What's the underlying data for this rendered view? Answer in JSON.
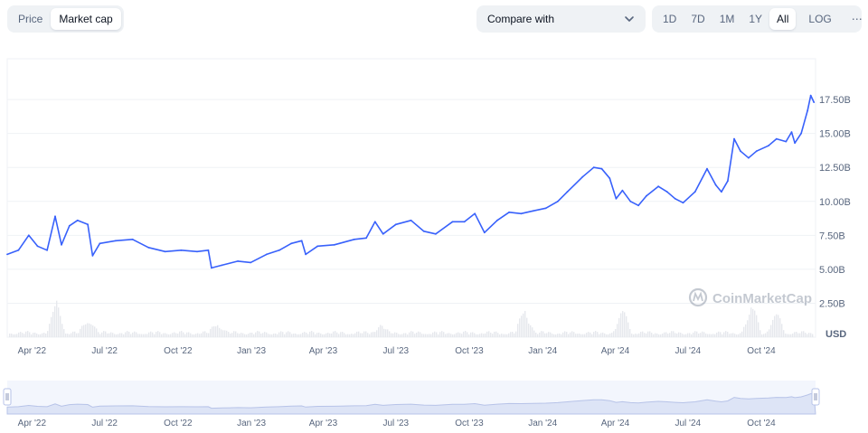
{
  "toolbar": {
    "chart_types": [
      "Price",
      "Market cap"
    ],
    "active_chart_type": "Market cap",
    "compare_label": "Compare with",
    "ranges": [
      "1D",
      "7D",
      "1M",
      "1Y",
      "All"
    ],
    "active_range": "All",
    "scale_label": "LOG",
    "more_icon": "more-dots-icon",
    "compare_icon": "chevron-down-icon"
  },
  "watermark": "CoinMarketCap",
  "colors": {
    "line": "#3861fb",
    "volume": "#e6e8ed",
    "grid": "#eff2f5",
    "navigator_fill": "#dde4f6"
  },
  "chart_data": {
    "type": "line",
    "ylabel": "USD",
    "y_ticks": [
      "2.50B",
      "5.00B",
      "7.50B",
      "10.00B",
      "12.50B",
      "15.00B",
      "17.50B"
    ],
    "y_tick_values": [
      2.5,
      5.0,
      7.5,
      10.0,
      12.5,
      15.0,
      17.5
    ],
    "ylim": [
      0,
      20.5
    ],
    "x_ticks": [
      "Apr '22",
      "Jul '22",
      "Oct '22",
      "Jan '23",
      "Apr '23",
      "Jul '23",
      "Oct '23",
      "Jan '24",
      "Apr '24",
      "Jul '24",
      "Oct '24"
    ],
    "x_tick_dates": [
      "2022-04-01",
      "2022-07-01",
      "2022-10-01",
      "2023-01-01",
      "2023-04-01",
      "2023-07-01",
      "2023-10-01",
      "2024-01-01",
      "2024-04-01",
      "2024-07-01",
      "2024-10-01"
    ],
    "xlim": [
      "2022-03-01",
      "2024-12-08"
    ],
    "grid": true,
    "series": [
      {
        "values": [
          [
            "2022-03-01",
            6.1
          ],
          [
            "2022-03-15",
            6.4
          ],
          [
            "2022-03-28",
            7.5
          ],
          [
            "2022-04-08",
            6.7
          ],
          [
            "2022-04-20",
            6.4
          ],
          [
            "2022-04-30",
            8.9
          ],
          [
            "2022-05-08",
            6.8
          ],
          [
            "2022-05-18",
            8.2
          ],
          [
            "2022-05-28",
            8.6
          ],
          [
            "2022-06-10",
            8.3
          ],
          [
            "2022-06-16",
            6.0
          ],
          [
            "2022-06-25",
            6.9
          ],
          [
            "2022-07-15",
            7.1
          ],
          [
            "2022-08-05",
            7.2
          ],
          [
            "2022-08-25",
            6.6
          ],
          [
            "2022-09-15",
            6.3
          ],
          [
            "2022-10-05",
            6.4
          ],
          [
            "2022-10-25",
            6.3
          ],
          [
            "2022-11-08",
            6.4
          ],
          [
            "2022-11-12",
            5.1
          ],
          [
            "2022-11-25",
            5.3
          ],
          [
            "2022-12-15",
            5.6
          ],
          [
            "2022-12-31",
            5.5
          ],
          [
            "2023-01-20",
            6.1
          ],
          [
            "2023-02-05",
            6.4
          ],
          [
            "2023-02-20",
            6.9
          ],
          [
            "2023-03-05",
            7.1
          ],
          [
            "2023-03-10",
            6.1
          ],
          [
            "2023-03-25",
            6.7
          ],
          [
            "2023-04-15",
            6.8
          ],
          [
            "2023-05-10",
            7.2
          ],
          [
            "2023-05-25",
            7.3
          ],
          [
            "2023-06-05",
            8.5
          ],
          [
            "2023-06-15",
            7.6
          ],
          [
            "2023-07-01",
            8.3
          ],
          [
            "2023-07-20",
            8.6
          ],
          [
            "2023-08-05",
            7.8
          ],
          [
            "2023-08-20",
            7.6
          ],
          [
            "2023-09-10",
            8.5
          ],
          [
            "2023-09-25",
            8.5
          ],
          [
            "2023-10-08",
            9.1
          ],
          [
            "2023-10-20",
            7.7
          ],
          [
            "2023-11-05",
            8.6
          ],
          [
            "2023-11-20",
            9.2
          ],
          [
            "2023-12-05",
            9.1
          ],
          [
            "2023-12-20",
            9.3
          ],
          [
            "2024-01-05",
            9.5
          ],
          [
            "2024-01-20",
            10.0
          ],
          [
            "2024-02-01",
            10.7
          ],
          [
            "2024-02-20",
            11.8
          ],
          [
            "2024-03-05",
            12.5
          ],
          [
            "2024-03-15",
            12.4
          ],
          [
            "2024-03-25",
            11.7
          ],
          [
            "2024-04-02",
            10.2
          ],
          [
            "2024-04-10",
            10.8
          ],
          [
            "2024-04-20",
            10.0
          ],
          [
            "2024-04-30",
            9.7
          ],
          [
            "2024-05-10",
            10.4
          ],
          [
            "2024-05-25",
            11.1
          ],
          [
            "2024-06-05",
            10.7
          ],
          [
            "2024-06-15",
            10.2
          ],
          [
            "2024-06-25",
            9.9
          ],
          [
            "2024-07-10",
            10.7
          ],
          [
            "2024-07-25",
            12.4
          ],
          [
            "2024-08-05",
            11.2
          ],
          [
            "2024-08-12",
            10.7
          ],
          [
            "2024-08-20",
            11.5
          ],
          [
            "2024-08-28",
            14.6
          ],
          [
            "2024-09-05",
            13.7
          ],
          [
            "2024-09-15",
            13.2
          ],
          [
            "2024-09-25",
            13.7
          ],
          [
            "2024-10-10",
            14.1
          ],
          [
            "2024-10-20",
            14.6
          ],
          [
            "2024-11-01",
            14.4
          ],
          [
            "2024-11-08",
            15.1
          ],
          [
            "2024-11-12",
            14.3
          ],
          [
            "2024-11-20",
            15.0
          ],
          [
            "2024-11-28",
            16.7
          ],
          [
            "2024-12-02",
            17.8
          ],
          [
            "2024-12-06",
            17.3
          ]
        ]
      }
    ]
  }
}
